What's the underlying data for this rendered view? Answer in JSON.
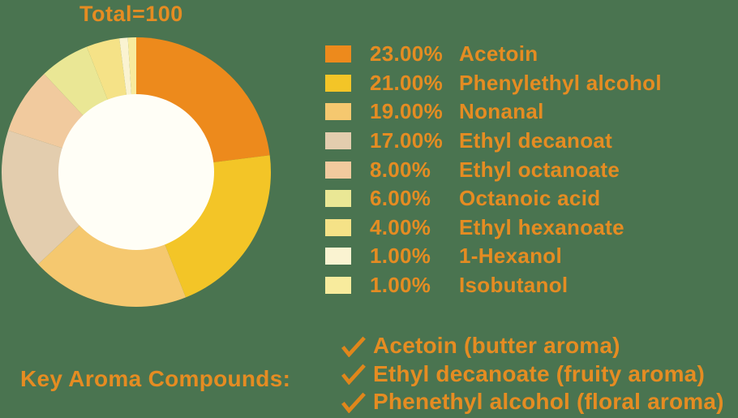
{
  "background_color": "#4A7450",
  "accent_text_color": "#E58C22",
  "title": "Total=100",
  "chart_data": {
    "type": "pie",
    "subtype": "donut",
    "title": "Total=100",
    "total": 100,
    "start_angle_deg": 0,
    "direction": "clockwise",
    "hole_color": "#FFFEF6",
    "legend_position": "right",
    "items": [
      {
        "label": "Acetoin",
        "value": 23,
        "pct_label": "23.00%",
        "color": "#ED8A1C"
      },
      {
        "label": "Phenylethyl alcohol",
        "value": 21,
        "pct_label": "21.00%",
        "color": "#F3C527"
      },
      {
        "label": "Nonanal",
        "value": 19,
        "pct_label": "19.00%",
        "color": "#F5C86F"
      },
      {
        "label": "Ethyl decanoat",
        "value": 17,
        "pct_label": "17.00%",
        "color": "#E3CDAE"
      },
      {
        "label": "Ethyl octanoate",
        "value": 8,
        "pct_label": "8.00%",
        "color": "#F1CA9E"
      },
      {
        "label": "Octanoic acid",
        "value": 6,
        "pct_label": "6.00%",
        "color": "#EAE795"
      },
      {
        "label": "Ethyl hexanoate",
        "value": 4,
        "pct_label": "4.00%",
        "color": "#F5E287"
      },
      {
        "label": "1-Hexanol",
        "value": 1,
        "pct_label": "1.00%",
        "color": "#FAF3D1"
      },
      {
        "label": "Isobutanol",
        "value": 1,
        "pct_label": "1.00%",
        "color": "#F8EB9D"
      }
    ]
  },
  "key_aroma": {
    "label": "Key Aroma Compounds:",
    "check_icon": "checkmark-icon",
    "check_color": "#E0861B",
    "items": [
      "Acetoin (butter aroma)",
      "Ethyl decanoate (fruity aroma)",
      "Phenethyl alcohol (floral aroma)"
    ]
  }
}
